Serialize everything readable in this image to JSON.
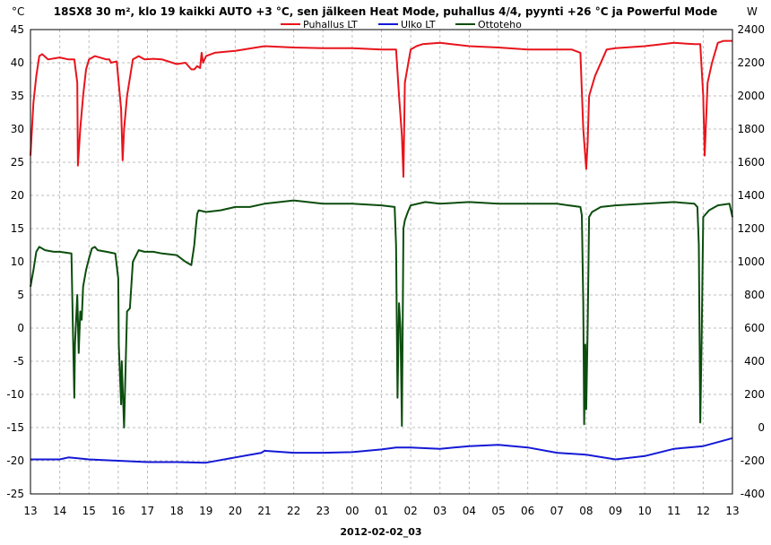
{
  "chart_data": {
    "type": "line",
    "title": "18SX8 30 m², klo 19 kaikki AUTO +3 °C, sen jälkeen Heat Mode, puhallus 4/4, pyynti +26 °C ja Powerful Mode",
    "xlabel": "2012-02-02_03",
    "y_left_unit": "°C",
    "y_right_unit": "W",
    "y_left_range": [
      -25,
      45
    ],
    "y_right_range": [
      -400,
      2400
    ],
    "y_left_ticks": [
      45,
      40,
      35,
      30,
      25,
      20,
      15,
      10,
      5,
      0,
      -5,
      -10,
      -15,
      -20,
      -25
    ],
    "y_right_ticks": [
      2400,
      2200,
      2000,
      1800,
      1600,
      1400,
      1200,
      1000,
      800,
      600,
      400,
      200,
      0,
      -200,
      -400
    ],
    "x_range": [
      0,
      24
    ],
    "x_tick_labels": [
      "13",
      "14",
      "15",
      "16",
      "17",
      "18",
      "19",
      "20",
      "21",
      "22",
      "23",
      "00",
      "01",
      "02",
      "03",
      "04",
      "05",
      "06",
      "07",
      "08",
      "09",
      "10",
      "11",
      "12",
      "13"
    ],
    "grid": true,
    "legend_position": "top-center",
    "series": [
      {
        "name": "Puhallus LT",
        "color": "#e8141c",
        "axis": "left",
        "x": [
          0,
          0.1,
          0.2,
          0.3,
          0.4,
          0.6,
          1.0,
          1.3,
          1.5,
          1.6,
          1.62,
          1.7,
          1.8,
          1.9,
          2.0,
          2.2,
          2.6,
          2.7,
          2.75,
          2.95,
          3.1,
          3.15,
          3.2,
          3.3,
          3.5,
          3.7,
          3.9,
          4.2,
          4.5,
          5.0,
          5.3,
          5.5,
          5.6,
          5.7,
          5.8,
          5.85,
          5.9,
          6.0,
          6.3,
          7.0,
          8.0,
          9.0,
          10.0,
          11.0,
          12.0,
          12.5,
          12.6,
          12.7,
          12.75,
          12.8,
          13.0,
          13.2,
          13.4,
          14.0,
          15.0,
          16.0,
          17.0,
          18.0,
          18.5,
          18.8,
          18.9,
          19.0,
          19.05,
          19.1,
          19.3,
          19.7,
          20.0,
          21.0,
          22.0,
          22.7,
          22.9,
          23.0,
          23.05,
          23.15,
          23.3,
          23.5,
          23.7,
          24.0
        ],
        "y": [
          26,
          34,
          38,
          41,
          41.3,
          40.5,
          40.8,
          40.5,
          40.5,
          37,
          24.5,
          30,
          35,
          39,
          40.5,
          41,
          40.5,
          40.5,
          40,
          40.2,
          33,
          25.3,
          30,
          35,
          40.5,
          41,
          40.5,
          40.6,
          40.5,
          39.8,
          40,
          39,
          39,
          39.5,
          39.2,
          41.5,
          40,
          41,
          41.5,
          41.8,
          42.5,
          42.3,
          42.2,
          42.2,
          42,
          42,
          35,
          29,
          22.8,
          37,
          42,
          42.5,
          42.8,
          43,
          42.5,
          42.3,
          42,
          42,
          42,
          41.5,
          30,
          24,
          28,
          35,
          38,
          42,
          42.2,
          42.5,
          43,
          42.8,
          42.8,
          35,
          26,
          37,
          40,
          43,
          43.3,
          43.3
        ]
      },
      {
        "name": "Ulko LT",
        "color": "#1419d6",
        "axis": "left",
        "x": [
          0,
          1,
          1.3,
          2,
          3,
          4,
          5,
          6,
          7,
          7.9,
          8,
          9,
          10,
          11,
          12,
          12.5,
          13,
          14,
          15,
          16,
          17,
          18,
          19,
          20,
          21,
          22,
          23,
          24
        ],
        "y": [
          -19.8,
          -19.8,
          -19.5,
          -19.8,
          -20,
          -20.2,
          -20.2,
          -20.3,
          -19.5,
          -18.8,
          -18.5,
          -18.8,
          -18.8,
          -18.7,
          -18.3,
          -18,
          -18,
          -18.2,
          -17.8,
          -17.6,
          -18,
          -18.8,
          -19.1,
          -19.8,
          -19.3,
          -18.2,
          -17.8,
          -16.6
        ]
      },
      {
        "name": "Ottoteho",
        "color": "#0c4d0e",
        "axis": "right",
        "x": [
          0,
          0.1,
          0.2,
          0.3,
          0.5,
          0.8,
          1.0,
          1.4,
          1.45,
          1.5,
          1.52,
          1.6,
          1.65,
          1.7,
          1.75,
          1.8,
          1.9,
          2.0,
          2.1,
          2.2,
          2.3,
          2.6,
          2.9,
          3.0,
          3.02,
          3.1,
          3.12,
          3.2,
          3.3,
          3.4,
          3.5,
          3.7,
          3.9,
          4.2,
          4.5,
          5.0,
          5.3,
          5.5,
          5.6,
          5.65,
          5.7,
          5.75,
          6.0,
          6.5,
          7.0,
          7.5,
          8.0,
          9.0,
          10.0,
          11.0,
          12.0,
          12.45,
          12.5,
          12.55,
          12.6,
          12.65,
          12.7,
          12.72,
          12.75,
          12.8,
          12.9,
          13.0,
          13.5,
          14.0,
          15.0,
          16.0,
          17.0,
          18.0,
          18.8,
          18.85,
          18.9,
          18.93,
          18.97,
          19.0,
          19.05,
          19.1,
          19.2,
          19.3,
          19.5,
          20.0,
          21.0,
          22.0,
          22.7,
          22.8,
          22.85,
          22.9,
          22.95,
          23.0,
          23.2,
          23.5,
          23.9,
          24.0
        ],
        "y": [
          850,
          950,
          1060,
          1090,
          1070,
          1060,
          1060,
          1050,
          600,
          180,
          500,
          800,
          450,
          700,
          650,
          850,
          950,
          1020,
          1080,
          1090,
          1070,
          1060,
          1050,
          900,
          500,
          140,
          400,
          0,
          700,
          720,
          1000,
          1070,
          1060,
          1060,
          1050,
          1040,
          1000,
          980,
          1100,
          1200,
          1290,
          1310,
          1300,
          1310,
          1330,
          1330,
          1350,
          1370,
          1350,
          1350,
          1340,
          1330,
          1100,
          180,
          750,
          600,
          10,
          500,
          1200,
          1250,
          1300,
          1340,
          1360,
          1350,
          1360,
          1350,
          1350,
          1350,
          1330,
          1280,
          750,
          20,
          500,
          110,
          600,
          1270,
          1300,
          1310,
          1330,
          1340,
          1350,
          1360,
          1350,
          1330,
          1100,
          30,
          550,
          1270,
          1310,
          1340,
          1350,
          1270
        ]
      }
    ]
  }
}
